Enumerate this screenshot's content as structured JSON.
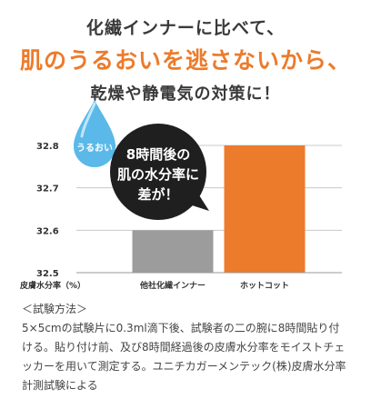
{
  "header": {
    "line1": "化繊インナーに比べて、",
    "line2": "肌のうるおいを逃さないから、",
    "line3": "乾燥や静電気の対策に！"
  },
  "badge": {
    "drop": "うるおい",
    "bubble": [
      "8時間後の",
      "肌の水分率に",
      "差が！"
    ]
  },
  "colors": {
    "accent": "#ec7b2b",
    "gray": "#9c9c9c",
    "drop": "#5ab9e8",
    "bubble": "#1f1f1f"
  },
  "chart_data": {
    "type": "bar",
    "categories": [
      "他社化繊インナー",
      "ホットコット"
    ],
    "values": [
      32.6,
      32.8
    ],
    "ylabel": "皮膚水分率（%）",
    "ylim": [
      32.5,
      32.8
    ],
    "yticks": [
      "32.8",
      "32.7",
      "32.6",
      "32.5"
    ],
    "grid": true
  },
  "method": {
    "title": "＜試験方法＞",
    "lines": [
      "5×5cmの試験片に0.3ml滴下後、試験者の二の腕に8時間貼り付",
      "ける。貼り付け前、及び8時間経過後の皮膚水分率をモイストチェ",
      "ッカーを用いて測定する。ユニチカガーメンテック(株)皮膚水分率",
      "計測試験による"
    ]
  }
}
